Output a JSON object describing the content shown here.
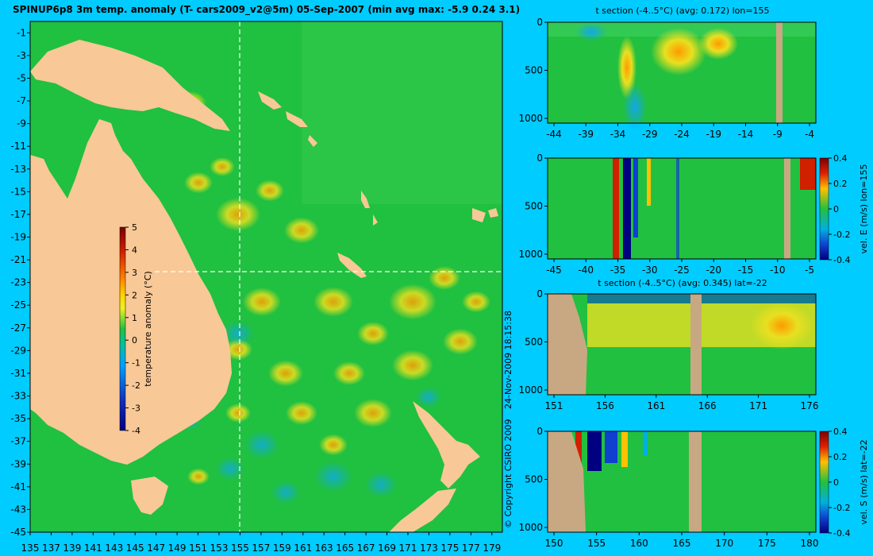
{
  "chart_data": [
    {
      "type": "heatmap",
      "title": "SPINUP6p8 3m temp. anomaly (T- cars2009_v2@5m) 05-Sep-2007 (min avg max: -5.9 0.24 3.1)",
      "xticks": [
        "135",
        "137",
        "139",
        "141",
        "143",
        "145",
        "147",
        "149",
        "151",
        "153",
        "155",
        "157",
        "159",
        "161",
        "163",
        "165",
        "167",
        "169",
        "171",
        "173",
        "175",
        "177",
        "179"
      ],
      "yticks": [
        "-1",
        "-3",
        "-5",
        "-7",
        "-9",
        "-11",
        "-13",
        "-15",
        "-17",
        "-19",
        "-21",
        "-23",
        "-25",
        "-27",
        "-29",
        "-31",
        "-33",
        "-35",
        "-37",
        "-39",
        "-41",
        "-43",
        "-45"
      ],
      "xlim": [
        135,
        180
      ],
      "ylim": [
        -45,
        0
      ],
      "section_lon": 155,
      "section_lat": -22,
      "colorbar": {
        "label": "temperature anomaly (°C)",
        "ticks": [
          "5",
          "4",
          "3",
          "2",
          "1",
          "0",
          "-1",
          "-2",
          "-3",
          "-4"
        ],
        "range": [
          -4,
          5
        ]
      },
      "copyright": "© Copyright CSIRO 2009",
      "timestamp": "24-Nov-2009 18:15:38"
    },
    {
      "type": "heatmap",
      "title": "t section (-4..5°C) (avg: 0.172) lon=155",
      "xticks": [
        "-44",
        "-39",
        "-34",
        "-29",
        "-24",
        "-19",
        "-14",
        "-9",
        "-4"
      ],
      "yticks": [
        "0",
        "500",
        "1000"
      ]
    },
    {
      "type": "heatmap",
      "title": "",
      "xticks": [
        "-45",
        "-40",
        "-35",
        "-30",
        "-25",
        "-20",
        "-15",
        "-10",
        "-5"
      ],
      "yticks": [
        "0",
        "500",
        "1000"
      ],
      "colorbar": {
        "label": "vel. E (m/s) lon=155",
        "ticks": [
          "0.4",
          "0.2",
          "0",
          "-0.2",
          "-0.4"
        ],
        "range": [
          -0.4,
          0.4
        ]
      }
    },
    {
      "type": "heatmap",
      "title": "t section (-4..5°C) (avg: 0.345) lat=-22",
      "xticks": [
        "151",
        "156",
        "161",
        "166",
        "171",
        "176"
      ],
      "yticks": [
        "0",
        "500",
        "1000"
      ]
    },
    {
      "type": "heatmap",
      "title": "",
      "xticks": [
        "150",
        "155",
        "160",
        "165",
        "170",
        "175",
        "180"
      ],
      "yticks": [
        "0",
        "500",
        "1000"
      ],
      "colorbar": {
        "label": "vel. S (m/s) lat=-22",
        "ticks": [
          "0.4",
          "0.2",
          "0",
          "-0.2",
          "-0.4"
        ],
        "range": [
          -0.4,
          0.4
        ]
      }
    }
  ],
  "colors": {
    "background": "#00ccff",
    "land": "#f8c896",
    "seafloor": "#c8a882",
    "anomaly_zero": "#22c040"
  }
}
